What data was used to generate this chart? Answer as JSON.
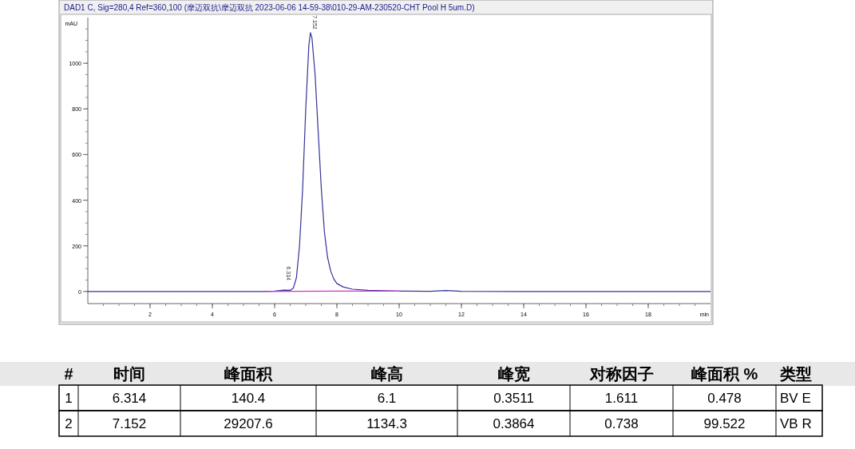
{
  "chart_data": {
    "type": "line",
    "title": "DAD1 C, Sig=280,4 Ref=360,100 (摩迈双抗\\摩迈双抗 2023-06-06 14-59-38\\010-29-AM-230520-CHT Pool H 5um.D)",
    "xlabel": "min",
    "ylabel": "mAU",
    "xlim": [
      0,
      20
    ],
    "xticks": [
      2,
      4,
      6,
      8,
      10,
      12,
      14,
      16,
      18
    ],
    "ylim": [
      -53,
      1200
    ],
    "yticks": [
      0,
      200,
      400,
      600,
      800,
      1000
    ],
    "grid": false,
    "series": [
      {
        "color": "#333399",
        "x": [
          0,
          2,
          4,
          5.6,
          5.7,
          6.0,
          6.3,
          6.5,
          6.6,
          6.7,
          6.8,
          6.9,
          7.0,
          7.1,
          7.152,
          7.2,
          7.3,
          7.4,
          7.5,
          7.6,
          7.7,
          7.8,
          7.9,
          8.0,
          8.2,
          8.5,
          9.0,
          10,
          11,
          11.5,
          12,
          14,
          20
        ],
        "values": [
          0,
          0,
          0,
          0,
          1,
          2,
          6,
          5,
          15,
          60,
          200,
          450,
          800,
          1080,
          1134,
          1110,
          950,
          700,
          450,
          260,
          150,
          90,
          55,
          35,
          20,
          10,
          5,
          2,
          1,
          4,
          1,
          0,
          0
        ]
      },
      {
        "color": "#cc33cc",
        "x": [
          5.7,
          6.6,
          8.0,
          10
        ],
        "values": [
          0,
          1,
          2,
          2
        ]
      }
    ],
    "annotations": [
      {
        "text": "6.314",
        "x": 6.314,
        "y": 6.1
      },
      {
        "text": "7.152",
        "x": 7.152,
        "y": 1134.3
      },
      "#",
      "时间",
      "峰面积",
      "峰高",
      "峰宽",
      "对称因子",
      "峰面积 %",
      "类型",
      "1",
      "6.314",
      "140.4",
      "6.1",
      "0.3511",
      "1.611",
      "0.478",
      "BV E",
      "2",
      "7.152",
      "29207.6",
      "1134.3",
      "0.3864",
      "0.738",
      "99.522",
      "VB R"
    ]
  }
}
